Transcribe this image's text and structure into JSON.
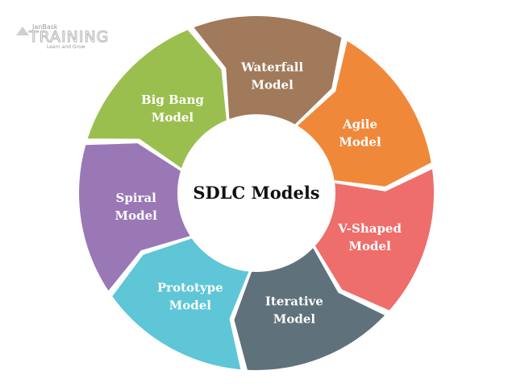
{
  "logo": {
    "brand_top": "JanBask",
    "brand_main": "TRAINING",
    "tagline": "Learn and Grow"
  },
  "center": {
    "title": "SDLC Models"
  },
  "segments": [
    {
      "id": "waterfall",
      "lines": [
        "Waterfall",
        "Model"
      ],
      "color": "#a07a5a"
    },
    {
      "id": "agile",
      "lines": [
        "Agile",
        "Model"
      ],
      "color": "#f0883a"
    },
    {
      "id": "v-shaped",
      "lines": [
        "V-Shaped",
        "Model"
      ],
      "color": "#ee6e6b"
    },
    {
      "id": "iterative",
      "lines": [
        "Iterative",
        "Model"
      ],
      "color": "#5f717a"
    },
    {
      "id": "prototype",
      "lines": [
        "Prototype",
        "Model"
      ],
      "color": "#5ec6d6"
    },
    {
      "id": "spiral",
      "lines": [
        "Spiral",
        "Model"
      ],
      "color": "#9a78b6"
    },
    {
      "id": "big-bang",
      "lines": [
        "Big Bang",
        "Model"
      ],
      "color": "#9bbf4e"
    }
  ]
}
